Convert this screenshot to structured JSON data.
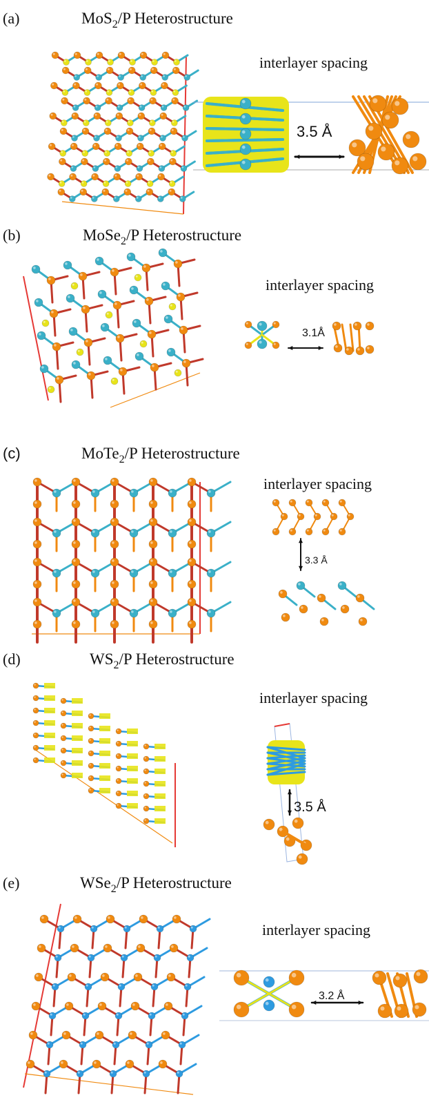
{
  "figure": {
    "panels": [
      {
        "label": "(a)",
        "compound": "MoS",
        "subscript": "2",
        "suffix": "/P Heterostructure",
        "spacing_label": "interlayer spacing",
        "distance": "3.5 Å"
      },
      {
        "label": "(b)",
        "compound": "MoSe",
        "subscript": "2",
        "suffix": "/P Heterostructure",
        "spacing_label": "interlayer spacing",
        "distance": "3.1Å"
      },
      {
        "label": "(c)",
        "compound": "MoTe",
        "subscript": "2",
        "suffix": "/P Heterostructure",
        "spacing_label": "interlayer spacing",
        "distance": "3.3 Å"
      },
      {
        "label": "(d)",
        "compound": "WS",
        "subscript": "2",
        "suffix": "/P Heterostructure",
        "spacing_label": "interlayer spacing",
        "distance": "3.5 Å"
      },
      {
        "label": "(e)",
        "compound": "WSe",
        "subscript": "2",
        "suffix": "/P Heterostructure",
        "spacing_label": "interlayer spacing",
        "distance": "3.2 Å"
      }
    ]
  },
  "colors": {
    "phosphorus": "#f08a10",
    "metal": "#3ab0c8",
    "metal_w": "#2e9be0",
    "chalcogen_yellow": "#e8e41a",
    "bond_red": "#c0392b",
    "cell_edge": "#e53935"
  },
  "icons": {
    "arrow": "double-headed-arrow-icon"
  }
}
